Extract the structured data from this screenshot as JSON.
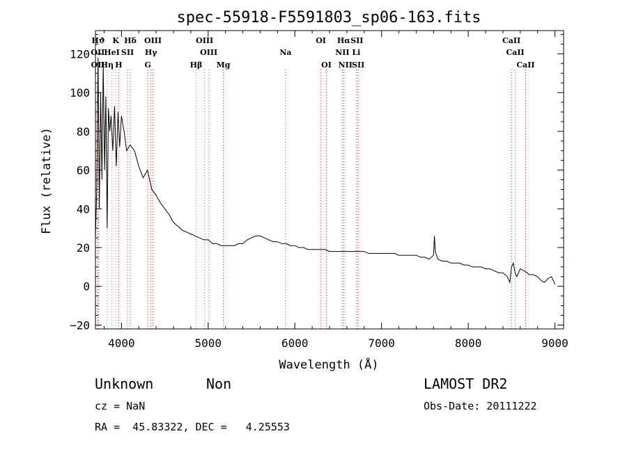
{
  "chart_data": {
    "type": "line",
    "title": "spec-55918-F5591803_sp06-163.fits",
    "xlabel": "Wavelength (Å)",
    "ylabel": "Flux (relative)",
    "xlim": [
      3700,
      9100
    ],
    "ylim": [
      -22,
      132
    ],
    "xticks": [
      4000,
      5000,
      6000,
      7000,
      8000,
      9000
    ],
    "yticks": [
      -20,
      0,
      20,
      40,
      60,
      80,
      100,
      120
    ],
    "grid": false,
    "series": [
      {
        "x": [
          3700,
          3715,
          3730,
          3745,
          3760,
          3775,
          3790,
          3805,
          3820,
          3835,
          3850,
          3865,
          3880,
          3900,
          3920,
          3940,
          3960,
          3980,
          4000,
          4030,
          4060,
          4100,
          4150,
          4200,
          4250,
          4300,
          4350,
          4400,
          4450,
          4500,
          4550,
          4600,
          4650,
          4700,
          4750,
          4800,
          4850,
          4900,
          4950,
          5000,
          5050,
          5100,
          5150,
          5200,
          5250,
          5300,
          5350,
          5400,
          5450,
          5500,
          5550,
          5600,
          5650,
          5700,
          5750,
          5800,
          5850,
          5900,
          5950,
          6000,
          6050,
          6100,
          6150,
          6200,
          6250,
          6300,
          6350,
          6400,
          6450,
          6500,
          6550,
          6600,
          6650,
          6700,
          6750,
          6800,
          6850,
          6900,
          6950,
          7000,
          7050,
          7100,
          7150,
          7200,
          7250,
          7300,
          7350,
          7400,
          7450,
          7500,
          7550,
          7600,
          7610,
          7620,
          7650,
          7700,
          7750,
          7800,
          7850,
          7900,
          7950,
          8000,
          8050,
          8100,
          8150,
          8200,
          8250,
          8300,
          8350,
          8400,
          8450,
          8480,
          8500,
          8520,
          8540,
          8560,
          8600,
          8640,
          8680,
          8700,
          8750,
          8800,
          8840,
          8880,
          8920,
          8960,
          9000
        ],
        "y": [
          25,
          50,
          118,
          40,
          100,
          55,
          115,
          60,
          98,
          30,
          92,
          80,
          88,
          70,
          93,
          62,
          90,
          72,
          88,
          80,
          70,
          73,
          70,
          62,
          56,
          60,
          50,
          47,
          43,
          40,
          37,
          33,
          31,
          29,
          28,
          27,
          26,
          25,
          24,
          24,
          22,
          22,
          21,
          21,
          21,
          21,
          22,
          22,
          24,
          25,
          26,
          26,
          25,
          24,
          23,
          23,
          22,
          22,
          21,
          21,
          20,
          20,
          19,
          19,
          19,
          19,
          19,
          18,
          18,
          18,
          18,
          18,
          18,
          18,
          18,
          18,
          17,
          17,
          17,
          17,
          17,
          17,
          17,
          16,
          16,
          16,
          16,
          16,
          15,
          15,
          14,
          16,
          26,
          18,
          14,
          13,
          13,
          12,
          12,
          12,
          11,
          11,
          10,
          10,
          10,
          9,
          9,
          8,
          7,
          7,
          5,
          2,
          10,
          12,
          7,
          5,
          9,
          8,
          7,
          6,
          6,
          5,
          3,
          2,
          4,
          5,
          1
        ]
      }
    ],
    "line_markers": [
      {
        "label": "Hϑ",
        "x": 3734,
        "row": 1
      },
      {
        "label": "K",
        "x": 3934,
        "row": 1
      },
      {
        "label": "Hδ",
        "x": 4102,
        "row": 1
      },
      {
        "label": "OIII",
        "x": 4363,
        "row": 1
      },
      {
        "label": "OIII",
        "x": 4959,
        "row": 1
      },
      {
        "label": "OI",
        "x": 6300,
        "row": 1
      },
      {
        "label": "Hα",
        "x": 6563,
        "row": 1
      },
      {
        "label": "SII",
        "x": 6716,
        "row": 1
      },
      {
        "label": "CaII",
        "x": 8498,
        "row": 1
      },
      {
        "label": "OII",
        "x": 3727,
        "row": 2
      },
      {
        "label": "HeI",
        "x": 3889,
        "row": 2
      },
      {
        "label": "SII",
        "x": 4070,
        "row": 2
      },
      {
        "label": "Hγ",
        "x": 4340,
        "row": 2
      },
      {
        "label": "OIII",
        "x": 5007,
        "row": 2
      },
      {
        "label": "Na",
        "x": 5893,
        "row": 2
      },
      {
        "label": "NII",
        "x": 6548,
        "row": 2
      },
      {
        "label": "Li",
        "x": 6708,
        "row": 2
      },
      {
        "label": "CaII",
        "x": 8542,
        "row": 2
      },
      {
        "label": "OII",
        "x": 3729,
        "row": 3
      },
      {
        "label": "Hη",
        "x": 3835,
        "row": 3
      },
      {
        "label": "H",
        "x": 3968,
        "row": 3
      },
      {
        "label": "G",
        "x": 4304,
        "row": 3
      },
      {
        "label": "Hβ",
        "x": 4861,
        "row": 3
      },
      {
        "label": "Mg",
        "x": 5175,
        "row": 3
      },
      {
        "label": "OI",
        "x": 6364,
        "row": 3
      },
      {
        "label": "NII",
        "x": 6583,
        "row": 3
      },
      {
        "label": "SII",
        "x": 6731,
        "row": 3
      },
      {
        "label": "CaII",
        "x": 8662,
        "row": 3
      }
    ]
  },
  "info": {
    "class": "Unknown",
    "subclass": "Non",
    "survey": "LAMOST DR2",
    "cz": "cz = NaN",
    "obs_date": "Obs-Date: 20111222",
    "coords": "RA =  45.83322, DEC =   4.25553"
  },
  "colors": {
    "spectrum": "#000000",
    "marker_line": "#cc3333",
    "marker_line_alt": "#888888"
  }
}
